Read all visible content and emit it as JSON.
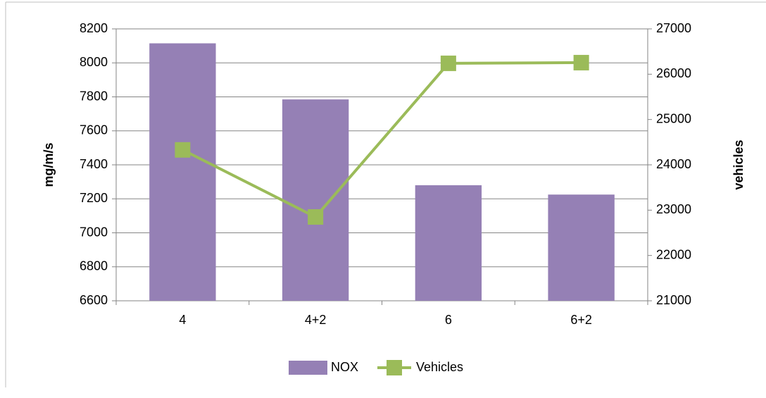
{
  "chart_data": {
    "type": "bar-line",
    "categories": [
      "4",
      "4+2",
      "6",
      "6+2"
    ],
    "series": [
      {
        "name": "NOX",
        "type": "bar",
        "color": "#9580b5",
        "values": [
          8115,
          7785,
          7280,
          7225
        ]
      },
      {
        "name": "Vehicles",
        "type": "line",
        "axis": "y2",
        "color": "#9bbb59",
        "values": [
          24330,
          22850,
          26240,
          26255
        ]
      }
    ],
    "ylabel": "mg/m/s",
    "y2label": "vehicles",
    "ylim": [
      6600,
      8200
    ],
    "yticks": [
      6600,
      6800,
      7000,
      7200,
      7400,
      7600,
      7800,
      8000,
      8200
    ],
    "y2lim": [
      21000,
      27000
    ],
    "y2ticks": [
      21000,
      22000,
      23000,
      24000,
      25000,
      26000,
      27000
    ],
    "grid": true,
    "legend": "bottom"
  }
}
